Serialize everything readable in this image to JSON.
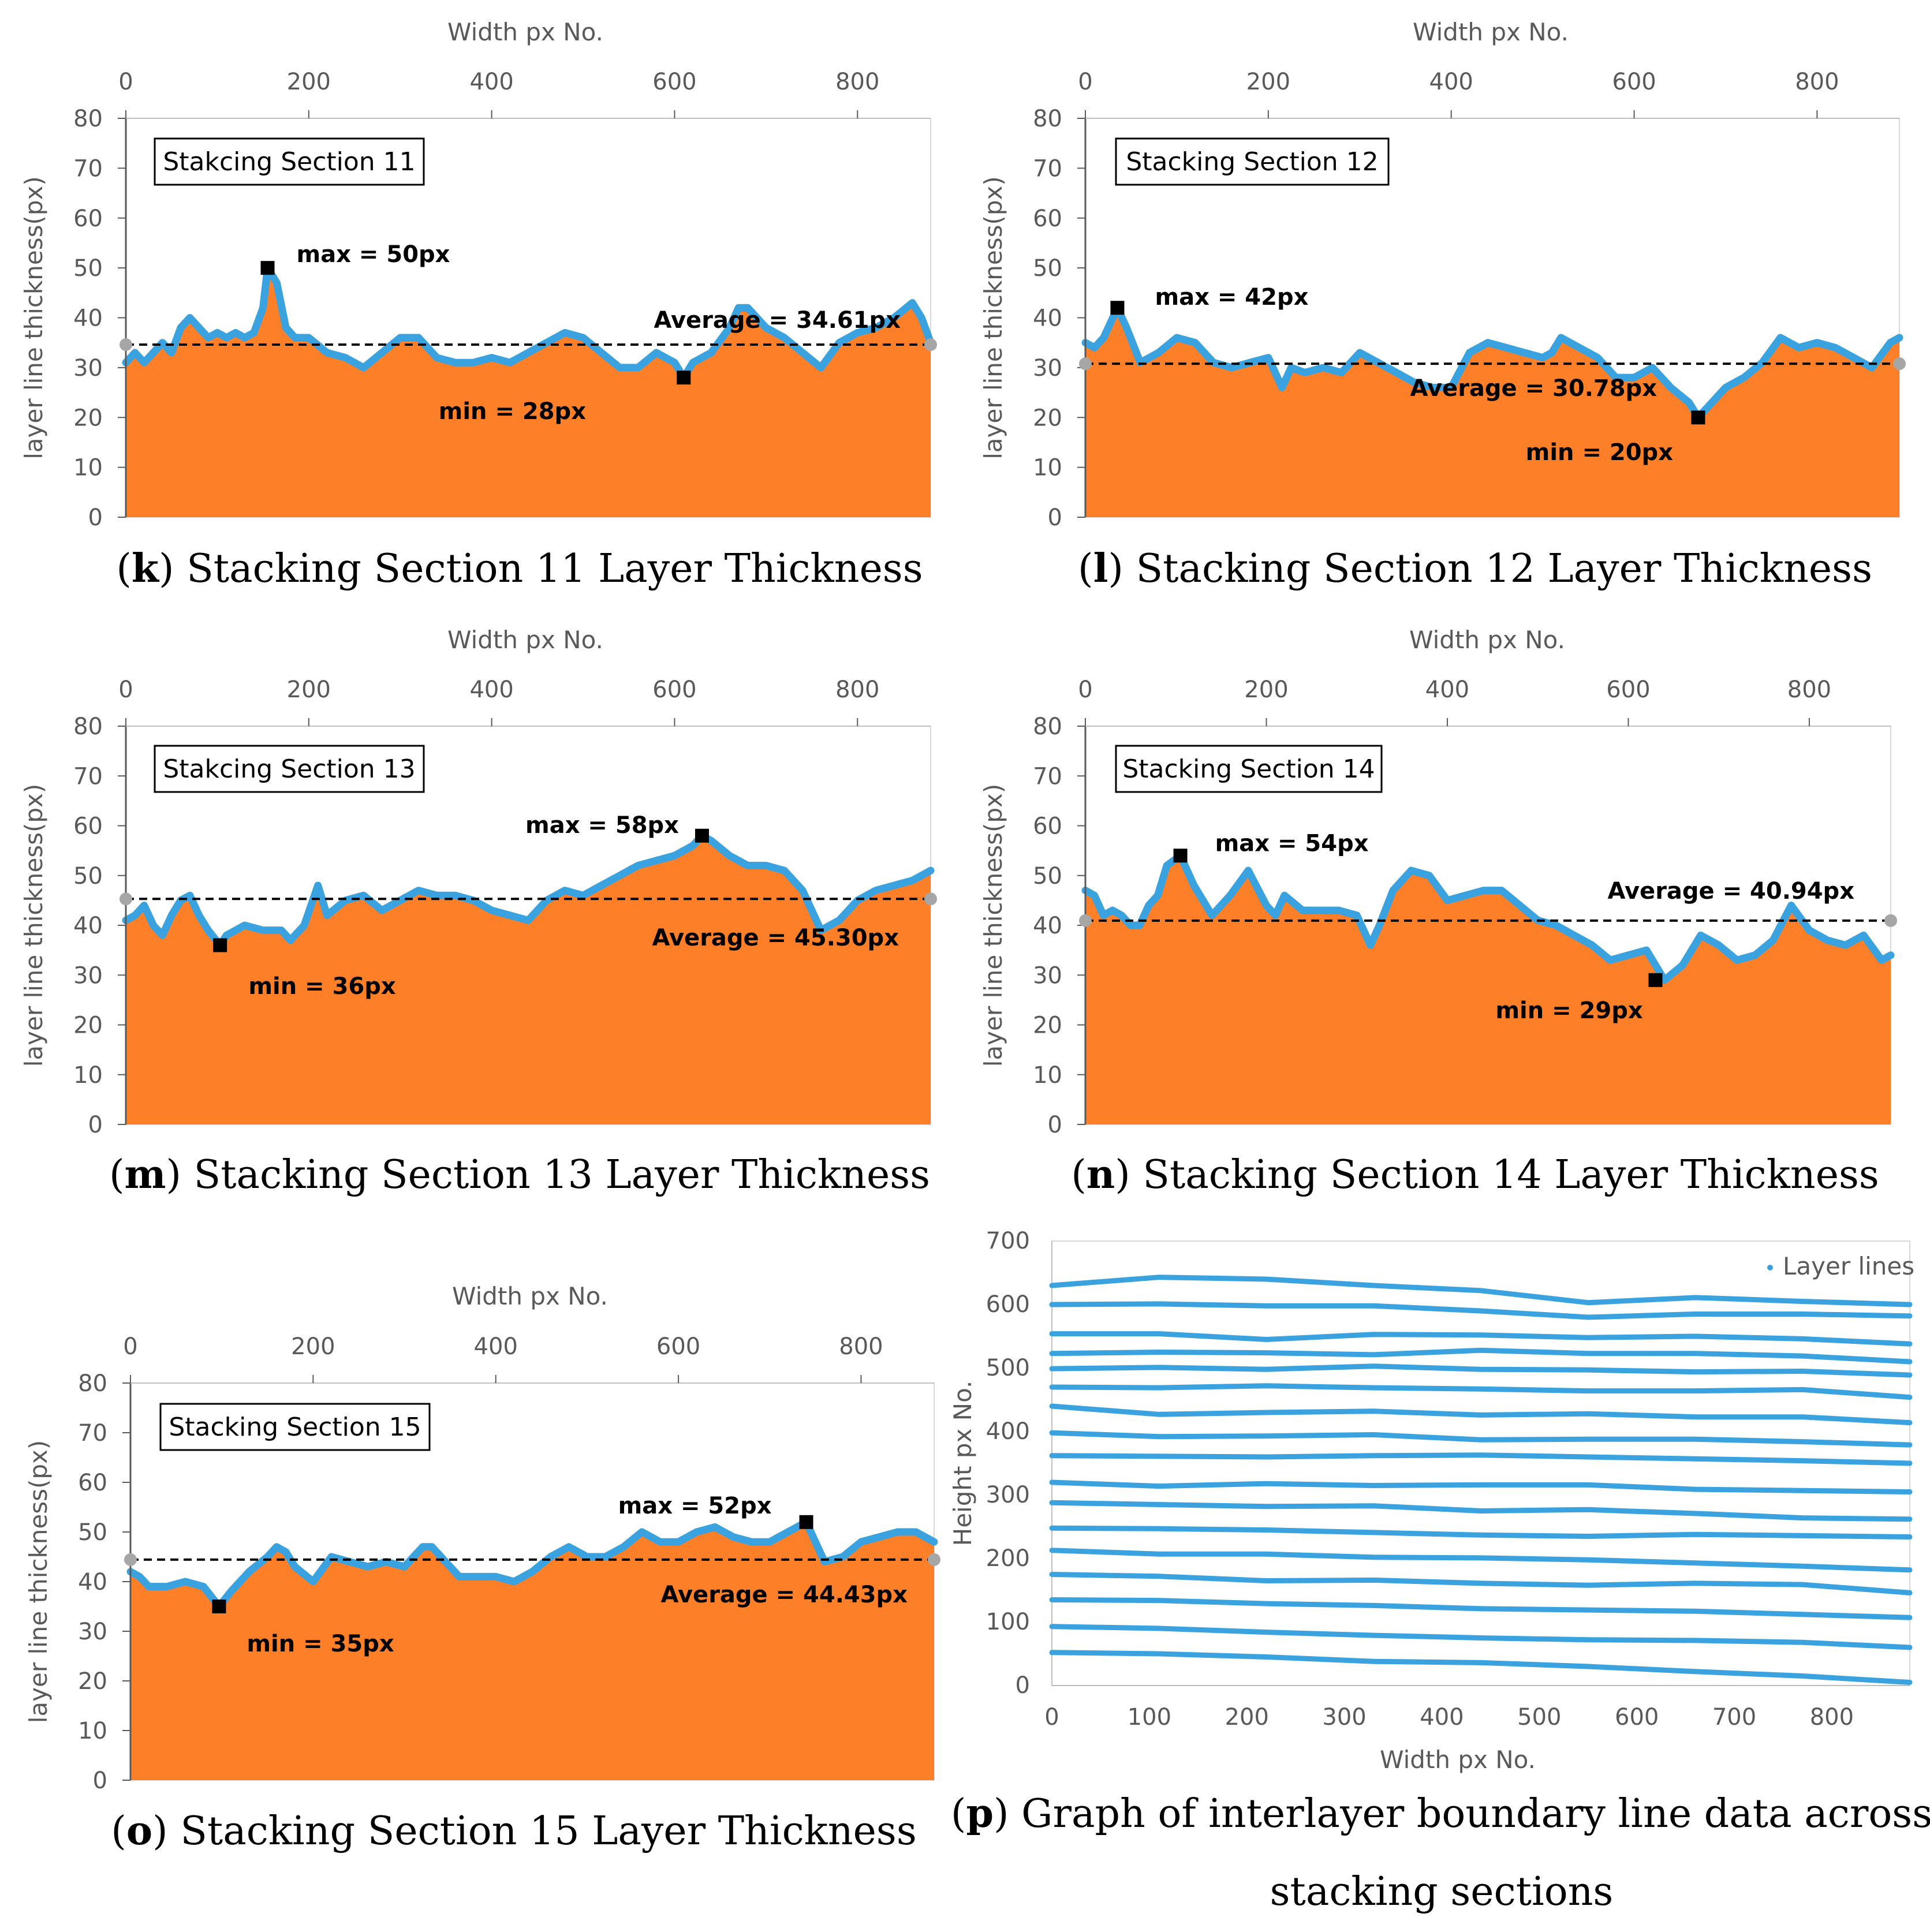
{
  "colors": {
    "fill": "#fd7f27",
    "line": "#3aa2de",
    "avg": "#000000",
    "marker": "#000000",
    "endpoint": "#a6a6a6",
    "axis": "#595959",
    "series_p": "#3aa2de"
  },
  "chart_data": [
    {
      "id": "k",
      "type": "area",
      "caption_letter": "k",
      "caption_text": "Stacking Section 11 Layer Thickness",
      "box_label": "Stakcing Section 11",
      "xlabel": "Width px No.",
      "ylabel": "layer line thickness(px)",
      "xlim": [
        0,
        880
      ],
      "ylim": [
        0,
        80
      ],
      "xticks": [
        0,
        200,
        400,
        600,
        800
      ],
      "yticks": [
        0,
        10,
        20,
        30,
        40,
        50,
        60,
        70,
        80
      ],
      "average": 34.61,
      "average_label": "Average = 34.61px",
      "max": {
        "x": 155,
        "y": 50,
        "label": "max = 50px"
      },
      "min": {
        "x": 610,
        "y": 28,
        "label": "min = 28px"
      },
      "x": [
        0,
        10,
        20,
        30,
        40,
        50,
        60,
        70,
        80,
        90,
        100,
        110,
        120,
        130,
        140,
        150,
        155,
        165,
        175,
        185,
        200,
        220,
        240,
        260,
        280,
        300,
        320,
        340,
        360,
        380,
        400,
        420,
        440,
        460,
        480,
        500,
        520,
        540,
        560,
        580,
        600,
        610,
        620,
        640,
        660,
        670,
        680,
        690,
        700,
        720,
        740,
        760,
        780,
        800,
        820,
        840,
        860,
        870,
        880
      ],
      "values": [
        31,
        33,
        31,
        33,
        35,
        33,
        38,
        40,
        38,
        36,
        37,
        36,
        37,
        36,
        37,
        42,
        50,
        47,
        38,
        36,
        36,
        33,
        32,
        30,
        33,
        36,
        36,
        32,
        31,
        31,
        32,
        31,
        33,
        35,
        37,
        36,
        33,
        30,
        30,
        33,
        31,
        28,
        31,
        33,
        38,
        42,
        42,
        40,
        38,
        36,
        33,
        30,
        35,
        37,
        38,
        40,
        43,
        40,
        35
      ]
    },
    {
      "id": "l",
      "type": "area",
      "caption_letter": "l",
      "caption_text": "Stacking Section 12 Layer Thickness",
      "box_label": "Stacking Section 12",
      "xlabel": "Width px No.",
      "ylabel": "layer line thickness(px)",
      "xlim": [
        0,
        890
      ],
      "ylim": [
        0,
        80
      ],
      "xticks": [
        0,
        200,
        400,
        600,
        800
      ],
      "yticks": [
        0,
        10,
        20,
        30,
        40,
        50,
        60,
        70,
        80
      ],
      "average": 30.78,
      "average_label": "Average = 30.78px",
      "max": {
        "x": 35,
        "y": 42,
        "label": "max = 42px"
      },
      "min": {
        "x": 670,
        "y": 20,
        "label": "min = 20px"
      },
      "x": [
        0,
        10,
        20,
        30,
        35,
        45,
        60,
        80,
        100,
        120,
        140,
        160,
        180,
        200,
        215,
        225,
        240,
        260,
        280,
        300,
        320,
        340,
        360,
        380,
        400,
        420,
        440,
        460,
        480,
        500,
        510,
        520,
        540,
        560,
        580,
        600,
        620,
        640,
        660,
        670,
        680,
        700,
        720,
        740,
        760,
        780,
        800,
        820,
        840,
        860,
        880,
        890
      ],
      "values": [
        35,
        34,
        36,
        40,
        42,
        38,
        31,
        33,
        36,
        35,
        31,
        30,
        31,
        32,
        26,
        30,
        29,
        30,
        29,
        33,
        31,
        29,
        27,
        26,
        26,
        33,
        35,
        34,
        33,
        32,
        33,
        36,
        34,
        32,
        28,
        28,
        30,
        26,
        23,
        20,
        22,
        26,
        28,
        31,
        36,
        34,
        35,
        34,
        32,
        30,
        35,
        36
      ]
    },
    {
      "id": "m",
      "type": "area",
      "caption_letter": "m",
      "caption_text": "Stacking Section 13 Layer Thickness",
      "box_label": "Stakcing Section 13",
      "xlabel": "Width px No.",
      "ylabel": "layer line thickness(px)",
      "xlim": [
        0,
        880
      ],
      "ylim": [
        0,
        80
      ],
      "xticks": [
        0,
        200,
        400,
        600,
        800
      ],
      "yticks": [
        0,
        10,
        20,
        30,
        40,
        50,
        60,
        70,
        80
      ],
      "average": 45.3,
      "average_label": "Average = 45.30px",
      "max": {
        "x": 630,
        "y": 58,
        "label": "max = 58px"
      },
      "min": {
        "x": 103,
        "y": 36,
        "label": "min = 36px"
      },
      "x": [
        0,
        10,
        20,
        30,
        40,
        50,
        60,
        70,
        80,
        90,
        103,
        110,
        130,
        150,
        170,
        180,
        195,
        210,
        220,
        240,
        260,
        280,
        300,
        320,
        340,
        360,
        380,
        400,
        420,
        440,
        460,
        480,
        500,
        520,
        540,
        560,
        580,
        600,
        620,
        630,
        640,
        660,
        680,
        700,
        720,
        740,
        760,
        780,
        800,
        820,
        840,
        860,
        880
      ],
      "values": [
        41,
        42,
        44,
        40,
        38,
        42,
        45,
        46,
        42,
        39,
        36,
        38,
        40,
        39,
        39,
        37,
        40,
        48,
        42,
        45,
        46,
        43,
        45,
        47,
        46,
        46,
        45,
        43,
        42,
        41,
        45,
        47,
        46,
        48,
        50,
        52,
        53,
        54,
        56,
        58,
        57,
        54,
        52,
        52,
        51,
        47,
        39,
        41,
        45,
        47,
        48,
        49,
        51
      ]
    },
    {
      "id": "n",
      "type": "area",
      "caption_letter": "n",
      "caption_text": "Stacking Section 14 Layer Thickness",
      "box_label": "Stacking Section 14",
      "xlabel": "Width px No.",
      "ylabel": "layer line thickness(px)",
      "xlim": [
        0,
        890
      ],
      "ylim": [
        0,
        80
      ],
      "xticks": [
        0,
        200,
        400,
        600,
        800
      ],
      "yticks": [
        0,
        10,
        20,
        30,
        40,
        50,
        60,
        70,
        80
      ],
      "average": 40.94,
      "average_label": "Average = 40.94px",
      "max": {
        "x": 105,
        "y": 54,
        "label": "max = 54px"
      },
      "min": {
        "x": 630,
        "y": 29,
        "label": "min = 29px"
      },
      "x": [
        0,
        10,
        20,
        30,
        40,
        50,
        60,
        70,
        80,
        90,
        105,
        120,
        140,
        160,
        180,
        200,
        210,
        220,
        240,
        260,
        280,
        300,
        315,
        325,
        340,
        360,
        380,
        400,
        420,
        440,
        460,
        480,
        500,
        520,
        540,
        560,
        580,
        600,
        620,
        630,
        640,
        660,
        680,
        700,
        720,
        740,
        760,
        780,
        800,
        820,
        840,
        860,
        880,
        890
      ],
      "values": [
        47,
        46,
        42,
        43,
        42,
        40,
        40,
        44,
        46,
        52,
        54,
        48,
        42,
        46,
        51,
        44,
        42,
        46,
        43,
        43,
        43,
        42,
        36,
        40,
        47,
        51,
        50,
        45,
        46,
        47,
        47,
        44,
        41,
        40,
        38,
        36,
        33,
        34,
        35,
        32,
        29,
        32,
        38,
        36,
        33,
        34,
        37,
        44,
        39,
        37,
        36,
        38,
        33,
        34
      ]
    },
    {
      "id": "o",
      "type": "area",
      "caption_letter": "o",
      "caption_text": "Stacking Section 15 Layer Thickness",
      "box_label": "Stacking Section 15",
      "xlabel": "Width px No.",
      "ylabel": "layer line thickness(px)",
      "xlim": [
        0,
        880
      ],
      "ylim": [
        0,
        80
      ],
      "xticks": [
        0,
        200,
        400,
        600,
        800
      ],
      "yticks": [
        0,
        10,
        20,
        30,
        40,
        50,
        60,
        70,
        80
      ],
      "average": 44.43,
      "average_label": "Average = 44.43px",
      "max": {
        "x": 740,
        "y": 52,
        "label": "max = 52px"
      },
      "min": {
        "x": 97,
        "y": 35,
        "label": "min = 35px"
      },
      "x": [
        0,
        10,
        20,
        40,
        60,
        80,
        97,
        110,
        130,
        150,
        160,
        170,
        180,
        200,
        220,
        240,
        260,
        280,
        300,
        320,
        330,
        340,
        360,
        380,
        400,
        420,
        440,
        460,
        480,
        500,
        520,
        540,
        560,
        580,
        600,
        620,
        640,
        660,
        680,
        700,
        720,
        740,
        760,
        780,
        800,
        820,
        840,
        860,
        880
      ],
      "values": [
        42,
        41,
        39,
        39,
        40,
        39,
        35,
        38,
        42,
        45,
        47,
        46,
        43,
        40,
        45,
        44,
        43,
        44,
        43,
        47,
        47,
        45,
        41,
        41,
        41,
        40,
        42,
        45,
        47,
        45,
        45,
        47,
        50,
        48,
        48,
        50,
        51,
        49,
        48,
        48,
        50,
        52,
        44,
        45,
        48,
        49,
        50,
        50,
        48
      ]
    },
    {
      "id": "p",
      "type": "scatter",
      "caption_letter": "p",
      "caption_text": "Graph of interlayer boundary line data across",
      "caption_text2": "stacking sections",
      "xlabel": "Width px No.",
      "ylabel": "Height px No.",
      "xlim": [
        0,
        880
      ],
      "ylim": [
        0,
        700
      ],
      "xticks": [
        0,
        100,
        200,
        300,
        400,
        500,
        600,
        700,
        800
      ],
      "yticks": [
        0,
        100,
        200,
        300,
        400,
        500,
        600,
        700
      ],
      "legend": "Layer lines",
      "legend_position": "top-right",
      "x": [
        0,
        110,
        220,
        330,
        440,
        550,
        660,
        770,
        880
      ],
      "series": [
        {
          "name": "line-1",
          "values": [
            52,
            50,
            45,
            38,
            36,
            30,
            22,
            15,
            5
          ]
        },
        {
          "name": "line-2",
          "values": [
            93,
            90,
            84,
            79,
            75,
            72,
            71,
            68,
            60
          ]
        },
        {
          "name": "line-3",
          "values": [
            135,
            134,
            129,
            126,
            121,
            119,
            117,
            112,
            107
          ]
        },
        {
          "name": "line-4",
          "values": [
            175,
            172,
            165,
            166,
            161,
            158,
            161,
            159,
            146
          ]
        },
        {
          "name": "line-5",
          "values": [
            213,
            207,
            207,
            202,
            201,
            198,
            193,
            188,
            182
          ]
        },
        {
          "name": "line-6",
          "values": [
            248,
            247,
            245,
            241,
            237,
            235,
            238,
            236,
            234
          ]
        },
        {
          "name": "line-7",
          "values": [
            288,
            285,
            282,
            283,
            275,
            277,
            271,
            264,
            262
          ]
        },
        {
          "name": "line-8",
          "values": [
            320,
            314,
            318,
            315,
            316,
            316,
            309,
            307,
            305
          ]
        },
        {
          "name": "line-9",
          "values": [
            362,
            361,
            360,
            362,
            363,
            360,
            357,
            354,
            350
          ]
        },
        {
          "name": "line-10",
          "values": [
            398,
            392,
            393,
            395,
            387,
            388,
            388,
            384,
            379
          ]
        },
        {
          "name": "line-11",
          "values": [
            440,
            427,
            430,
            432,
            426,
            428,
            423,
            423,
            414
          ]
        },
        {
          "name": "line-12",
          "values": [
            470,
            469,
            472,
            469,
            467,
            464,
            464,
            466,
            454
          ]
        },
        {
          "name": "line-13",
          "values": [
            499,
            501,
            498,
            503,
            498,
            497,
            494,
            495,
            489
          ]
        },
        {
          "name": "line-14",
          "values": [
            523,
            525,
            524,
            521,
            528,
            523,
            523,
            519,
            510
          ]
        },
        {
          "name": "line-15",
          "values": [
            554,
            554,
            545,
            553,
            552,
            548,
            550,
            546,
            538
          ]
        },
        {
          "name": "line-16",
          "values": [
            600,
            601,
            598,
            598,
            590,
            580,
            585,
            585,
            582
          ]
        },
        {
          "name": "line-17",
          "values": [
            630,
            643,
            640,
            630,
            622,
            603,
            611,
            605,
            600
          ]
        }
      ]
    }
  ]
}
